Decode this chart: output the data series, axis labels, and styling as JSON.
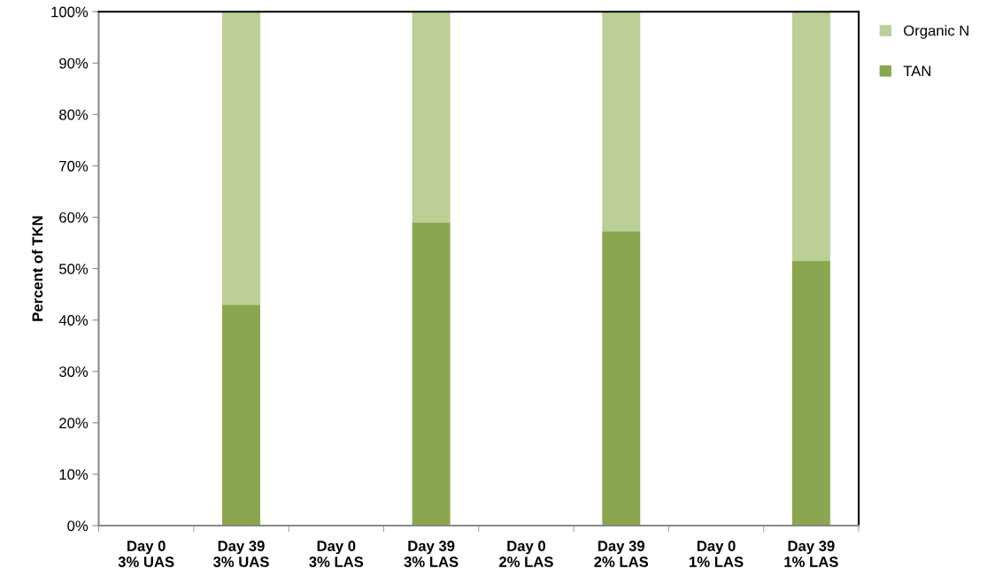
{
  "chart_data": {
    "type": "bar",
    "stacked": true,
    "ylabel": "Percent of TKN",
    "categories": [
      "Day 0\n3% UAS",
      "Day 39\n3% UAS",
      "Day 0\n3% LAS",
      "Day 39\n3% LAS",
      "Day 0\n2% LAS",
      "Day 39\n2% LAS",
      "Day 0\n1% LAS",
      "Day 39\n1% LAS"
    ],
    "series": [
      {
        "name": "TAN",
        "color": "#8aa64e",
        "values": [
          null,
          43,
          null,
          59,
          null,
          57.3,
          null,
          51.5
        ]
      },
      {
        "name": "Organic N",
        "color": "#bbcf97",
        "values": [
          null,
          57,
          null,
          41,
          null,
          42.7,
          null,
          48.5
        ]
      }
    ],
    "ylim": [
      0,
      100
    ],
    "yticks": [
      {
        "value": 0,
        "label": "0%"
      },
      {
        "value": 10,
        "label": "10%"
      },
      {
        "value": 20,
        "label": "20%"
      },
      {
        "value": 30,
        "label": "30%"
      },
      {
        "value": 40,
        "label": "40%"
      },
      {
        "value": 50,
        "label": "50%"
      },
      {
        "value": 60,
        "label": "60%"
      },
      {
        "value": 70,
        "label": "70%"
      },
      {
        "value": 80,
        "label": "80%"
      },
      {
        "value": 90,
        "label": "90%"
      },
      {
        "value": 100,
        "label": "100%"
      }
    ],
    "grid": false,
    "legend": "top right"
  }
}
